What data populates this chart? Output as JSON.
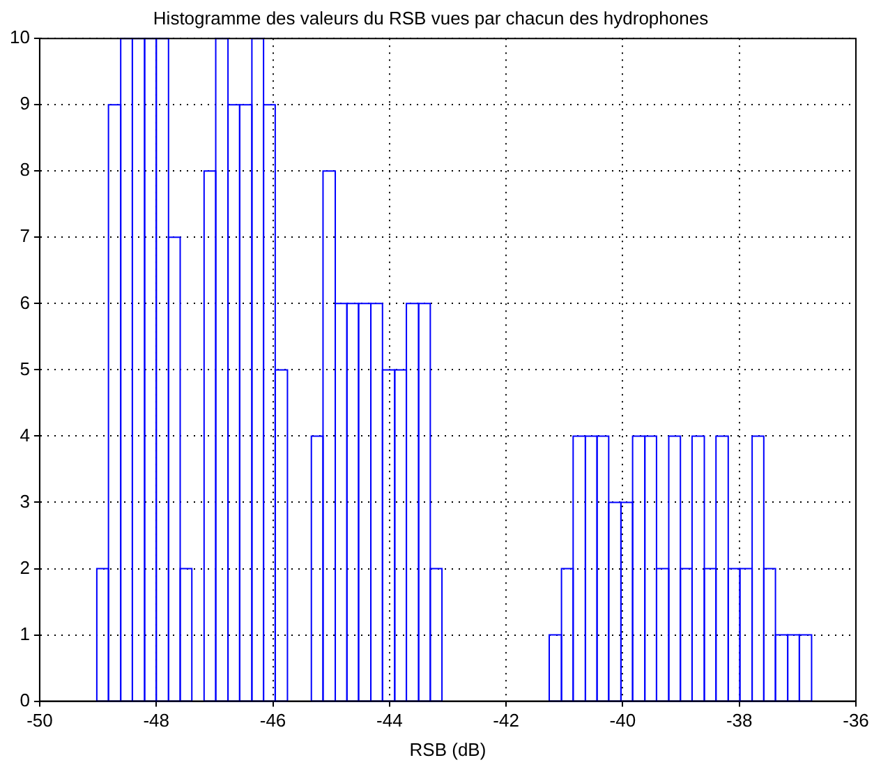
{
  "chart_data": {
    "type": "histogram",
    "title": "Histogramme des valeurs du RSB vues par chacun des hydrophones",
    "xlabel": "RSB (dB)",
    "bins": [
      -49.02,
      -48.82,
      -48.61,
      -48.41,
      -48.2,
      -48.0,
      -47.79,
      -47.59,
      -47.39,
      -47.18,
      -46.98,
      -46.77,
      -46.57,
      -46.36,
      -46.16,
      -45.96,
      -45.75,
      -45.34,
      -45.14,
      -44.93,
      -44.73,
      -44.53,
      -44.32,
      -44.12,
      -43.91,
      -43.71,
      -43.5,
      -43.3,
      -43.1,
      -41.26,
      -41.05,
      -40.85,
      -40.64,
      -40.44,
      -40.24,
      -40.03,
      -39.83,
      -39.62,
      -39.42,
      -39.21,
      -39.01,
      -38.81,
      -38.6,
      -38.4,
      -38.19,
      -37.99,
      -37.78,
      -37.58,
      -37.38,
      -37.17,
      -36.97,
      -36.76
    ],
    "values": [
      2,
      9,
      10,
      10,
      10,
      10,
      7,
      2,
      0,
      8,
      10,
      9,
      9,
      10,
      9,
      5,
      0,
      4,
      8,
      6,
      6,
      6,
      6,
      5,
      5,
      6,
      6,
      2,
      0,
      1,
      2,
      4,
      4,
      4,
      3,
      3,
      4,
      4,
      2,
      4,
      2,
      4,
      2,
      4,
      2,
      2,
      4,
      2,
      1,
      1,
      1
    ],
    "color": "#0000ff",
    "xlim": [
      -50,
      -36
    ],
    "xticks": [
      -50,
      -48,
      -46,
      -44,
      -42,
      -40,
      -38,
      -36
    ],
    "ylim": [
      0,
      10
    ],
    "yticks": [
      0,
      1,
      2,
      3,
      4,
      5,
      6,
      7,
      8,
      9,
      10
    ],
    "grid": true
  }
}
